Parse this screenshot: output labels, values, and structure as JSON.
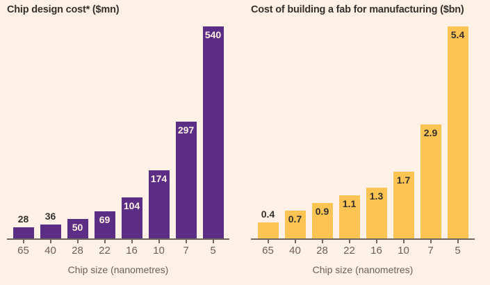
{
  "page": {
    "background": "#FFF1E5",
    "title_color": "#33302E",
    "axis_color": "#6E675F",
    "tick_label_color": "#66605C"
  },
  "chart_data": [
    {
      "type": "bar",
      "title": "Chip design cost* ($mn)",
      "xlabel": "Chip size (nanometres)",
      "ylabel": "",
      "categories": [
        "65",
        "40",
        "28",
        "22",
        "16",
        "10",
        "7",
        "5"
      ],
      "values": [
        28,
        36,
        50,
        69,
        104,
        174,
        297,
        540
      ],
      "labels": [
        "28",
        "36",
        "50",
        "69",
        "104",
        "174",
        "297",
        "540"
      ],
      "ylim": [
        0,
        540
      ],
      "grid": false,
      "legend": "none",
      "bar_color": "#5B2D84",
      "inside_label_color": "#FFF1E5",
      "outside_label_color": "#33302E"
    },
    {
      "type": "bar",
      "title": "Cost of building a fab for manufacturing ($bn)",
      "xlabel": "Chip size (nanometres)",
      "ylabel": "",
      "categories": [
        "65",
        "40",
        "28",
        "22",
        "16",
        "10",
        "7",
        "5"
      ],
      "values": [
        0.4,
        0.7,
        0.9,
        1.1,
        1.3,
        1.7,
        2.9,
        5.4
      ],
      "labels": [
        "0.4",
        "0.7",
        "0.9",
        "1.1",
        "1.3",
        "1.7",
        "2.9",
        "5.4"
      ],
      "ylim": [
        0,
        5.4
      ],
      "grid": false,
      "legend": "none",
      "bar_color": "#FCC452",
      "inside_label_color": "#33302E",
      "outside_label_color": "#33302E"
    }
  ]
}
